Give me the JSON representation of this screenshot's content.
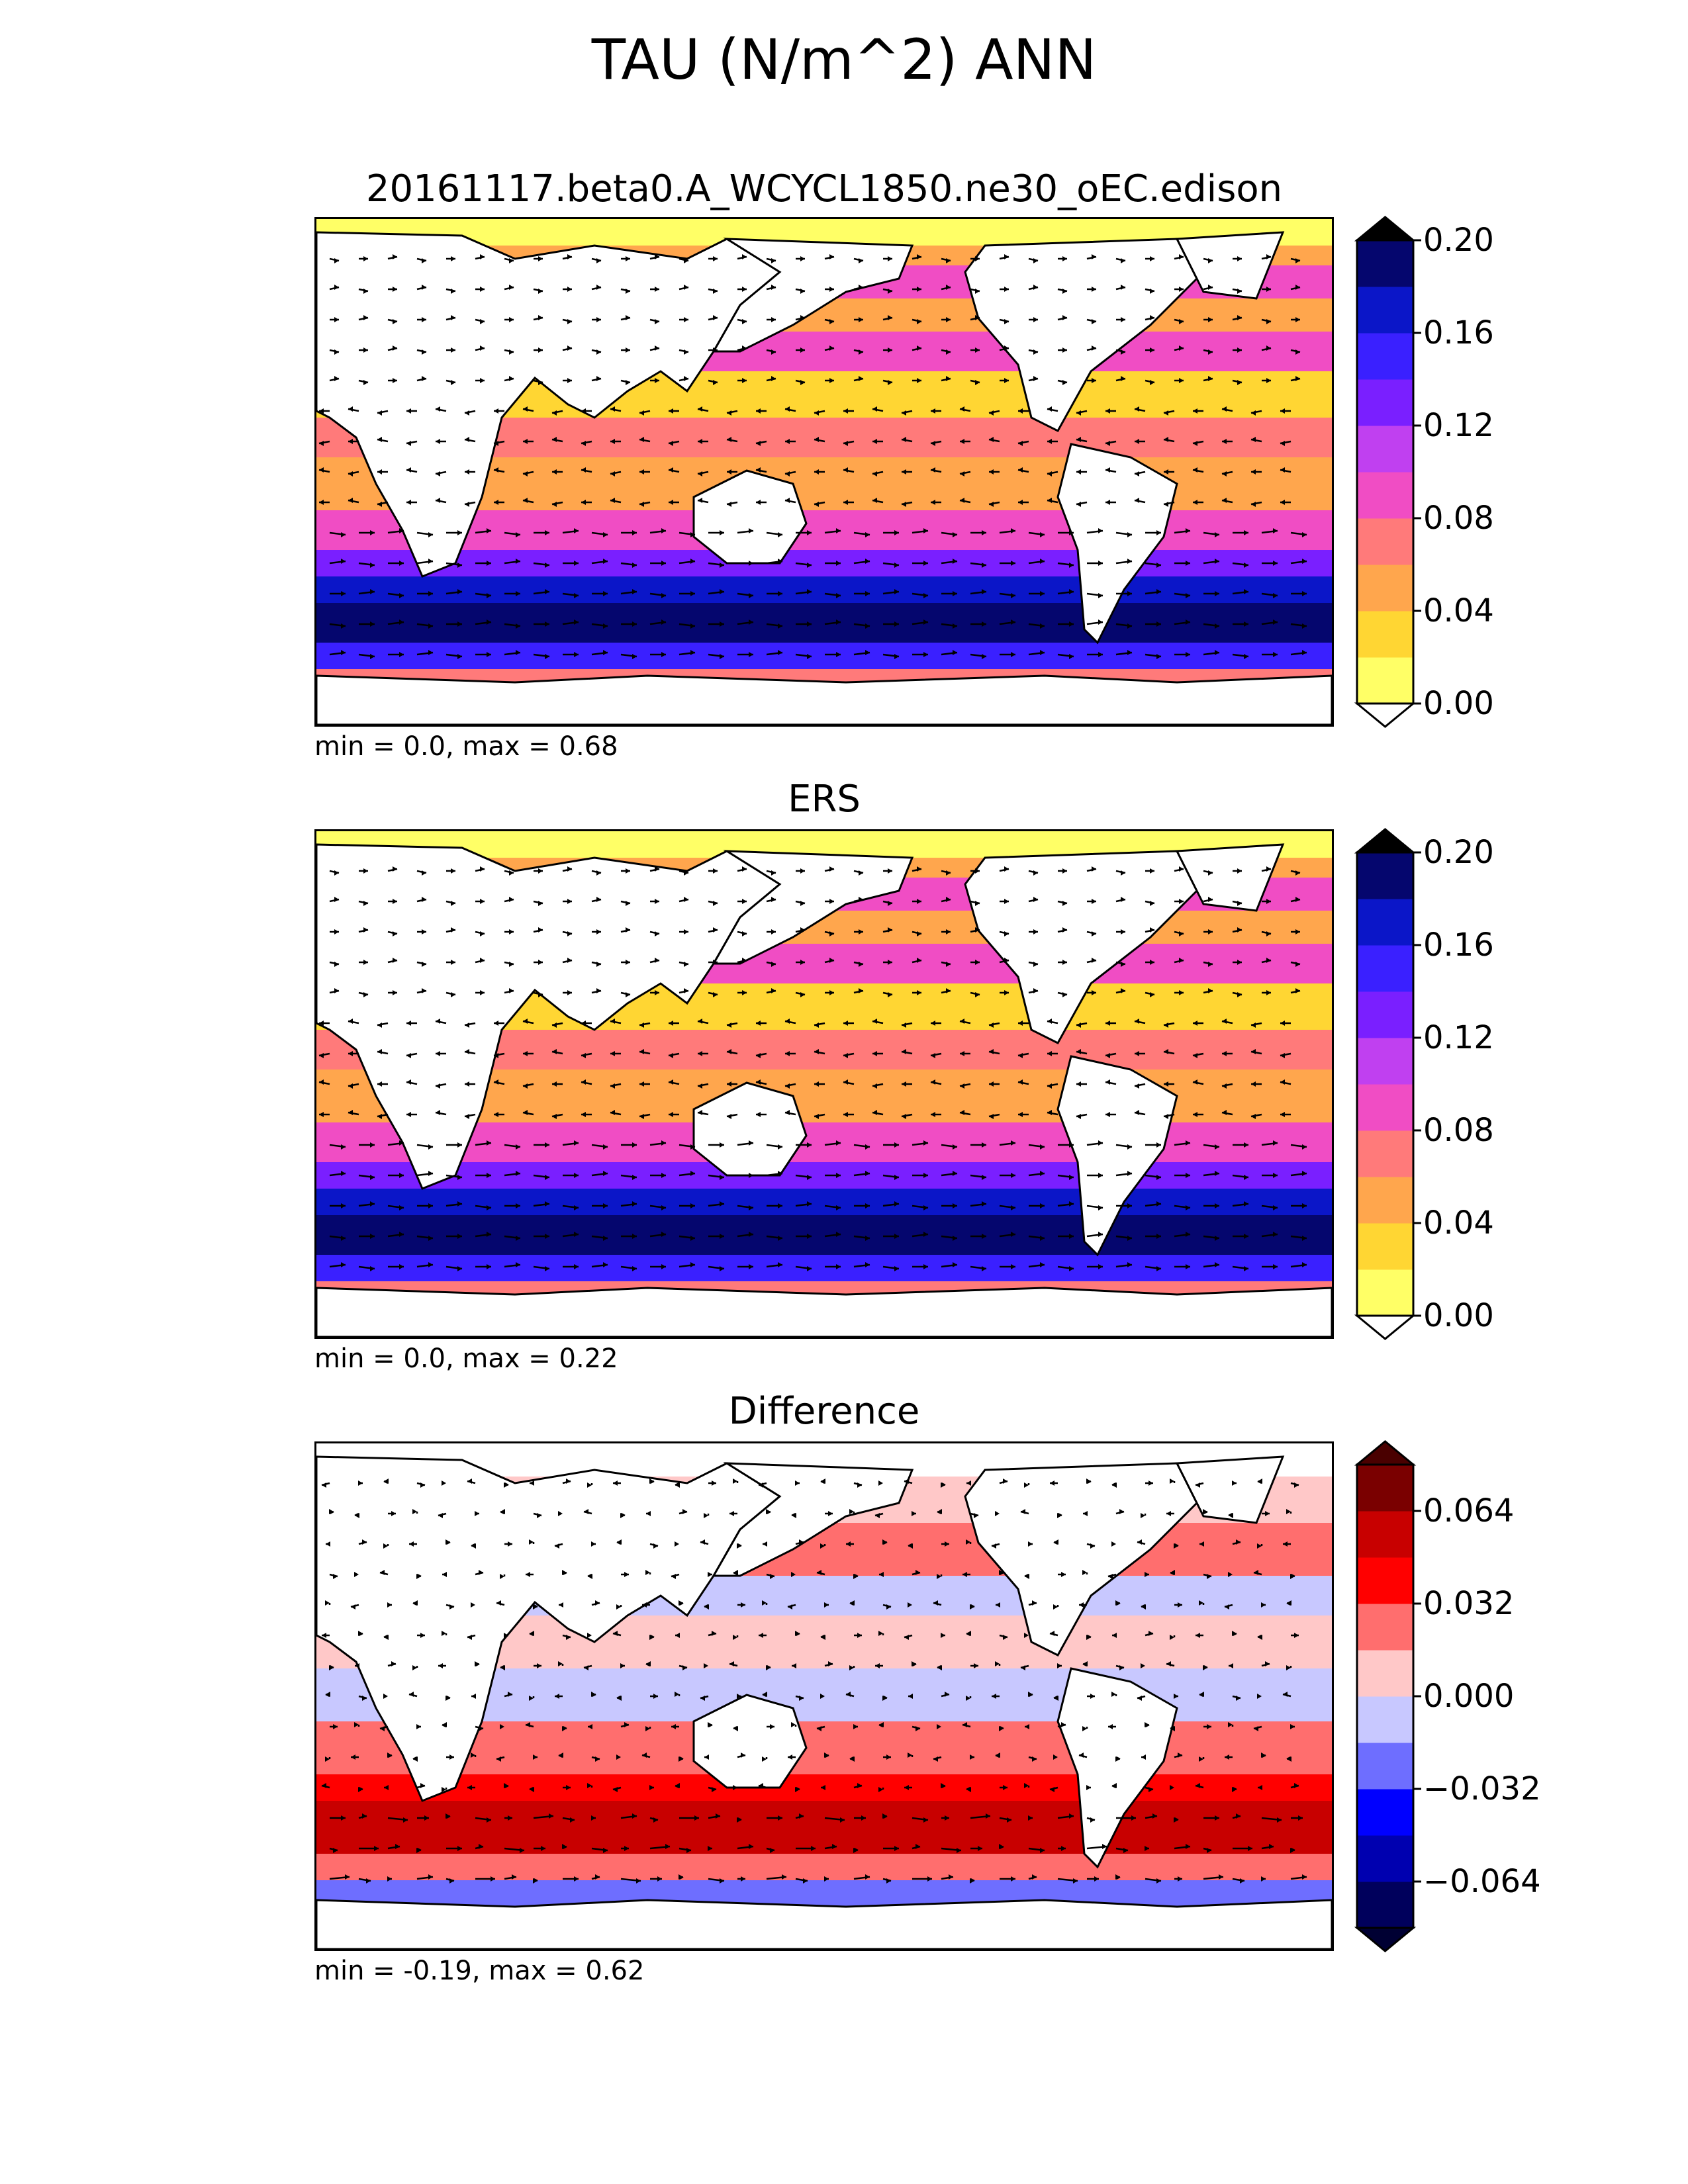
{
  "figure": {
    "title": "TAU (N/m^2) ANN"
  },
  "chart_data": [
    {
      "type": "heatmap",
      "panel": "test",
      "title": "20161117.beta0.A_WCYCL1850.ne30_oEC.edison",
      "stats": "min = 0.0, max = 0.68",
      "colorbar": {
        "levels": [
          0.0,
          0.02,
          0.04,
          0.06,
          0.08,
          0.1,
          0.12,
          0.14,
          0.16,
          0.18,
          0.2
        ],
        "colors": [
          "#ffff66",
          "#ffd633",
          "#ffa64d",
          "#ff7a7a",
          "#f04dc4",
          "#c040f0",
          "#7a1fff",
          "#3a20ff",
          "#0b16c8",
          "#05066e"
        ],
        "extend_low": "#ffffff",
        "extend_high": "#000000",
        "tick_labels": [
          "0.00",
          "0.04",
          "0.08",
          "0.12",
          "0.16",
          "0.20"
        ]
      }
    },
    {
      "type": "heatmap",
      "panel": "reference",
      "title": "ERS",
      "stats": "min = 0.0, max = 0.22",
      "colorbar": {
        "levels": [
          0.0,
          0.02,
          0.04,
          0.06,
          0.08,
          0.1,
          0.12,
          0.14,
          0.16,
          0.18,
          0.2
        ],
        "colors": [
          "#ffff66",
          "#ffd633",
          "#ffa64d",
          "#ff7a7a",
          "#f04dc4",
          "#c040f0",
          "#7a1fff",
          "#3a20ff",
          "#0b16c8",
          "#05066e"
        ],
        "extend_low": "#ffffff",
        "extend_high": "#000000",
        "tick_labels": [
          "0.00",
          "0.04",
          "0.08",
          "0.12",
          "0.16",
          "0.20"
        ]
      }
    },
    {
      "type": "heatmap",
      "panel": "difference",
      "title": "Difference",
      "stats": "min = -0.19, max = 0.62",
      "colorbar": {
        "levels": [
          -0.08,
          -0.064,
          -0.048,
          -0.032,
          -0.016,
          0.0,
          0.016,
          0.032,
          0.048,
          0.064,
          0.08
        ],
        "colors": [
          "#00005c",
          "#0000b0",
          "#0000ff",
          "#6e6eff",
          "#c8c8ff",
          "#ffc8c8",
          "#ff6e6e",
          "#ff0000",
          "#c80000",
          "#7a0000"
        ],
        "extend_low": "#000033",
        "extend_high": "#4a0000",
        "tick_labels": [
          "−0.064",
          "−0.032",
          "0.000",
          "0.032",
          "0.064"
        ]
      }
    }
  ]
}
